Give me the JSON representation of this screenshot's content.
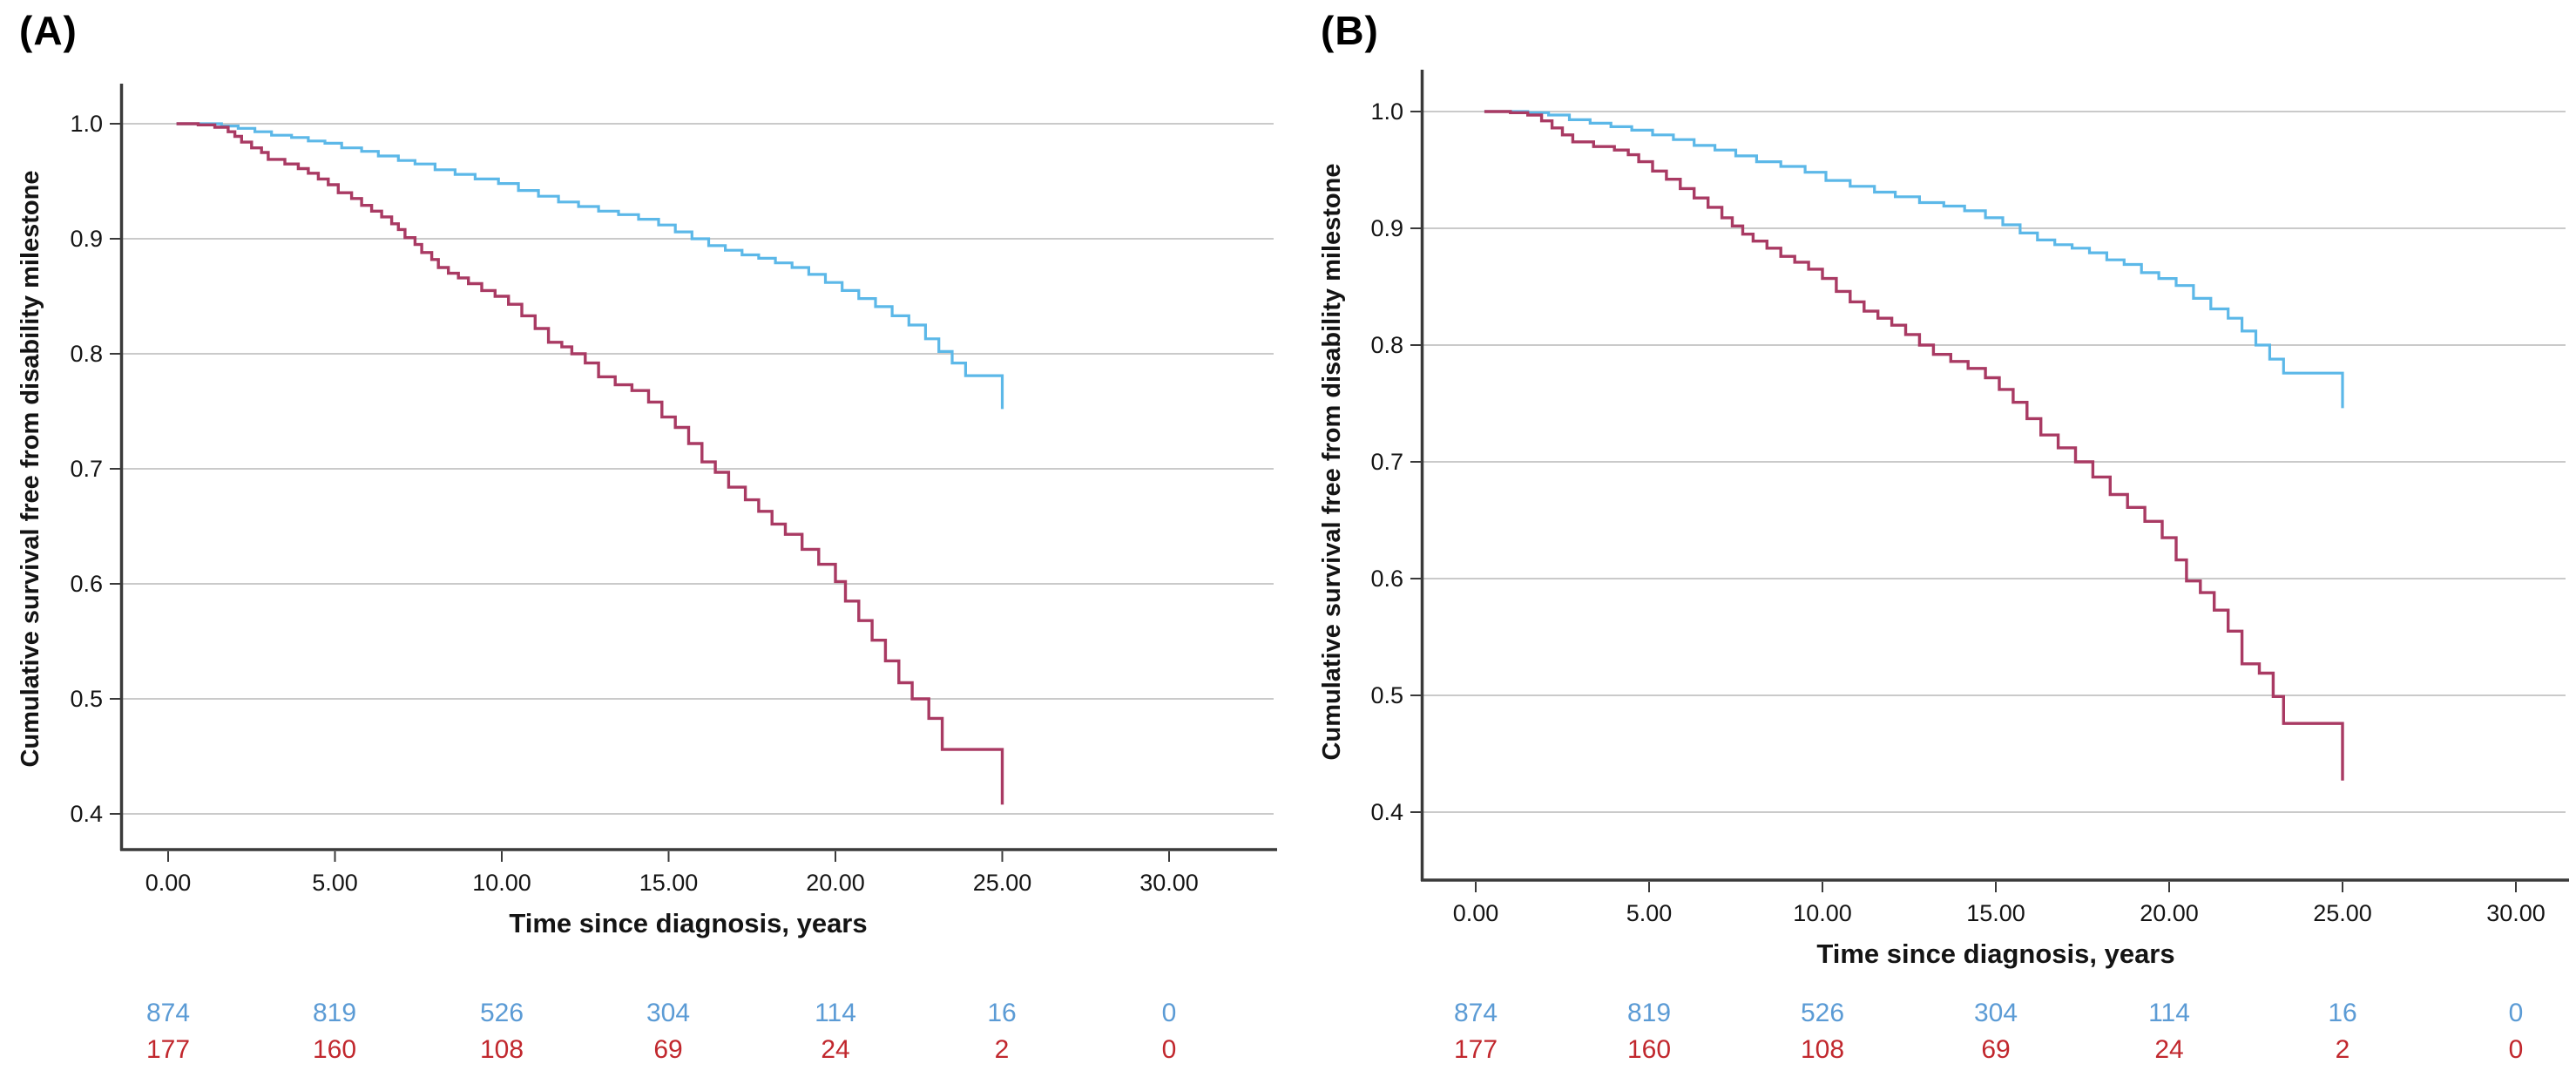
{
  "panels": [
    {
      "label": "(A)",
      "x_axis": {
        "title": "Time since diagnosis, years",
        "ticks": [
          "0.00",
          "5.00",
          "10.00",
          "15.00",
          "20.00",
          "25.00",
          "30.00"
        ]
      },
      "y_axis": {
        "title": "Cumulative survival free from disability milestone",
        "ticks": [
          "1.0",
          "0.9",
          "0.8",
          "0.7",
          "0.6",
          "0.5",
          "0.4"
        ]
      }
    },
    {
      "label": "(B)",
      "x_axis": {
        "title": "Time since diagnosis, years",
        "ticks": [
          "0.00",
          "5.00",
          "10.00",
          "15.00",
          "20.00",
          "25.00",
          "30.00"
        ]
      },
      "y_axis": {
        "title": "Cumulative survival free from disability milestone",
        "ticks": [
          "1.0",
          "0.9",
          "0.8",
          "0.7",
          "0.6",
          "0.5",
          "0.4"
        ]
      }
    }
  ],
  "colors": {
    "blue_curve": "#5cb8e8",
    "red_curve": "#a93a63",
    "blue_at_risk_text": "#5b9bd5",
    "red_at_risk_text": "#c1272d",
    "gridline": "#b8b8b8",
    "axis": "#3a3a3a"
  },
  "chart_data": [
    {
      "type": "line",
      "subtype": "kaplan-meier-step",
      "title": "(A)",
      "xlabel": "Time since diagnosis, years",
      "ylabel": "Cumulative survival free from disability milestone",
      "xlim": [
        0,
        30
      ],
      "ylim": [
        0.4,
        1.0
      ],
      "x_ticks": [
        0,
        5,
        10,
        15,
        20,
        25,
        30
      ],
      "y_ticks": [
        1.0,
        0.9,
        0.8,
        0.7,
        0.6,
        0.5,
        0.4
      ],
      "grid": "horizontal-only",
      "legend": "none",
      "series": [
        {
          "name": "blue",
          "color": "#5cb8e8",
          "points": [
            [
              0.25,
              1.0
            ],
            [
              1.6,
              0.998
            ],
            [
              2.1,
              0.996
            ],
            [
              2.6,
              0.993
            ],
            [
              3.1,
              0.99
            ],
            [
              3.7,
              0.988
            ],
            [
              4.2,
              0.985
            ],
            [
              4.7,
              0.983
            ],
            [
              5.2,
              0.979
            ],
            [
              5.8,
              0.976
            ],
            [
              6.3,
              0.972
            ],
            [
              6.9,
              0.968
            ],
            [
              7.4,
              0.965
            ],
            [
              8.0,
              0.96
            ],
            [
              8.6,
              0.956
            ],
            [
              9.2,
              0.952
            ],
            [
              9.9,
              0.948
            ],
            [
              10.5,
              0.942
            ],
            [
              11.1,
              0.937
            ],
            [
              11.7,
              0.932
            ],
            [
              12.3,
              0.928
            ],
            [
              12.9,
              0.924
            ],
            [
              13.5,
              0.921
            ],
            [
              14.1,
              0.917
            ],
            [
              14.7,
              0.912
            ],
            [
              15.2,
              0.906
            ],
            [
              15.7,
              0.9
            ],
            [
              16.2,
              0.894
            ],
            [
              16.7,
              0.89
            ],
            [
              17.2,
              0.886
            ],
            [
              17.7,
              0.883
            ],
            [
              18.2,
              0.879
            ],
            [
              18.7,
              0.875
            ],
            [
              19.2,
              0.869
            ],
            [
              19.7,
              0.862
            ],
            [
              20.2,
              0.855
            ],
            [
              20.7,
              0.848
            ],
            [
              21.2,
              0.841
            ],
            [
              21.7,
              0.833
            ],
            [
              22.2,
              0.825
            ],
            [
              22.7,
              0.813
            ],
            [
              23.1,
              0.802
            ],
            [
              23.5,
              0.792
            ],
            [
              23.9,
              0.781
            ],
            [
              25.0,
              0.752
            ]
          ]
        },
        {
          "name": "red",
          "color": "#a93a63",
          "points": [
            [
              0.25,
              1.0
            ],
            [
              0.9,
              0.999
            ],
            [
              1.4,
              0.997
            ],
            [
              1.8,
              0.993
            ],
            [
              2.0,
              0.989
            ],
            [
              2.2,
              0.984
            ],
            [
              2.5,
              0.979
            ],
            [
              2.8,
              0.975
            ],
            [
              3.0,
              0.969
            ],
            [
              3.5,
              0.965
            ],
            [
              3.9,
              0.961
            ],
            [
              4.2,
              0.957
            ],
            [
              4.5,
              0.952
            ],
            [
              4.8,
              0.947
            ],
            [
              5.1,
              0.94
            ],
            [
              5.5,
              0.935
            ],
            [
              5.8,
              0.929
            ],
            [
              6.1,
              0.924
            ],
            [
              6.4,
              0.919
            ],
            [
              6.7,
              0.913
            ],
            [
              6.9,
              0.908
            ],
            [
              7.1,
              0.901
            ],
            [
              7.4,
              0.895
            ],
            [
              7.6,
              0.888
            ],
            [
              7.9,
              0.882
            ],
            [
              8.1,
              0.875
            ],
            [
              8.4,
              0.87
            ],
            [
              8.7,
              0.866
            ],
            [
              9.0,
              0.861
            ],
            [
              9.4,
              0.855
            ],
            [
              9.8,
              0.85
            ],
            [
              10.2,
              0.843
            ],
            [
              10.6,
              0.833
            ],
            [
              11.0,
              0.822
            ],
            [
              11.4,
              0.81
            ],
            [
              11.8,
              0.806
            ],
            [
              12.1,
              0.8
            ],
            [
              12.5,
              0.792
            ],
            [
              12.9,
              0.78
            ],
            [
              13.4,
              0.773
            ],
            [
              13.9,
              0.768
            ],
            [
              14.4,
              0.758
            ],
            [
              14.8,
              0.745
            ],
            [
              15.2,
              0.736
            ],
            [
              15.6,
              0.722
            ],
            [
              16.0,
              0.706
            ],
            [
              16.4,
              0.697
            ],
            [
              16.8,
              0.684
            ],
            [
              17.3,
              0.673
            ],
            [
              17.7,
              0.663
            ],
            [
              18.1,
              0.652
            ],
            [
              18.5,
              0.643
            ],
            [
              19.0,
              0.63
            ],
            [
              19.5,
              0.617
            ],
            [
              20.0,
              0.602
            ],
            [
              20.3,
              0.585
            ],
            [
              20.7,
              0.568
            ],
            [
              21.1,
              0.551
            ],
            [
              21.5,
              0.533
            ],
            [
              21.9,
              0.514
            ],
            [
              22.3,
              0.5
            ],
            [
              22.8,
              0.483
            ],
            [
              23.2,
              0.456
            ],
            [
              25.0,
              0.408
            ]
          ]
        }
      ],
      "at_risk": {
        "times": [
          0,
          5,
          10,
          15,
          20,
          25,
          30
        ],
        "blue": [
          874,
          819,
          526,
          304,
          114,
          16,
          0
        ],
        "red": [
          177,
          160,
          108,
          69,
          24,
          2,
          0
        ]
      }
    },
    {
      "type": "line",
      "subtype": "kaplan-meier-step",
      "title": "(B)",
      "xlabel": "Time since diagnosis, years",
      "ylabel": "Cumulative survival free from disability milestone",
      "xlim": [
        0,
        30
      ],
      "ylim": [
        0.4,
        1.0
      ],
      "x_ticks": [
        0,
        5,
        10,
        15,
        20,
        25,
        30
      ],
      "y_ticks": [
        1.0,
        0.9,
        0.8,
        0.7,
        0.6,
        0.5,
        0.4
      ],
      "grid": "horizontal-only",
      "legend": "none",
      "series": [
        {
          "name": "blue",
          "color": "#5cb8e8",
          "points": [
            [
              0.25,
              1.0
            ],
            [
              1.5,
              0.999
            ],
            [
              2.1,
              0.997
            ],
            [
              2.7,
              0.993
            ],
            [
              3.3,
              0.99
            ],
            [
              3.9,
              0.987
            ],
            [
              4.5,
              0.984
            ],
            [
              5.1,
              0.98
            ],
            [
              5.7,
              0.976
            ],
            [
              6.3,
              0.971
            ],
            [
              6.9,
              0.967
            ],
            [
              7.5,
              0.962
            ],
            [
              8.1,
              0.957
            ],
            [
              8.8,
              0.953
            ],
            [
              9.5,
              0.948
            ],
            [
              10.1,
              0.941
            ],
            [
              10.8,
              0.936
            ],
            [
              11.5,
              0.931
            ],
            [
              12.1,
              0.927
            ],
            [
              12.8,
              0.922
            ],
            [
              13.5,
              0.919
            ],
            [
              14.1,
              0.915
            ],
            [
              14.7,
              0.909
            ],
            [
              15.2,
              0.903
            ],
            [
              15.7,
              0.896
            ],
            [
              16.2,
              0.89
            ],
            [
              16.7,
              0.886
            ],
            [
              17.2,
              0.883
            ],
            [
              17.7,
              0.879
            ],
            [
              18.2,
              0.873
            ],
            [
              18.7,
              0.869
            ],
            [
              19.2,
              0.862
            ],
            [
              19.7,
              0.857
            ],
            [
              20.2,
              0.851
            ],
            [
              20.7,
              0.84
            ],
            [
              21.2,
              0.831
            ],
            [
              21.7,
              0.823
            ],
            [
              22.1,
              0.812
            ],
            [
              22.5,
              0.8
            ],
            [
              22.9,
              0.788
            ],
            [
              23.3,
              0.776
            ],
            [
              25.0,
              0.746
            ]
          ]
        },
        {
          "name": "red",
          "color": "#a93a63",
          "points": [
            [
              0.25,
              1.0
            ],
            [
              1.0,
              0.999
            ],
            [
              1.5,
              0.997
            ],
            [
              1.9,
              0.992
            ],
            [
              2.2,
              0.986
            ],
            [
              2.5,
              0.98
            ],
            [
              2.8,
              0.974
            ],
            [
              3.4,
              0.97
            ],
            [
              4.0,
              0.967
            ],
            [
              4.4,
              0.963
            ],
            [
              4.7,
              0.957
            ],
            [
              5.1,
              0.949
            ],
            [
              5.5,
              0.942
            ],
            [
              5.9,
              0.934
            ],
            [
              6.3,
              0.926
            ],
            [
              6.7,
              0.918
            ],
            [
              7.1,
              0.909
            ],
            [
              7.4,
              0.902
            ],
            [
              7.7,
              0.895
            ],
            [
              8.0,
              0.889
            ],
            [
              8.4,
              0.883
            ],
            [
              8.8,
              0.876
            ],
            [
              9.2,
              0.871
            ],
            [
              9.6,
              0.865
            ],
            [
              10.0,
              0.857
            ],
            [
              10.4,
              0.846
            ],
            [
              10.8,
              0.837
            ],
            [
              11.2,
              0.829
            ],
            [
              11.6,
              0.823
            ],
            [
              12.0,
              0.817
            ],
            [
              12.4,
              0.809
            ],
            [
              12.8,
              0.8
            ],
            [
              13.2,
              0.792
            ],
            [
              13.7,
              0.786
            ],
            [
              14.2,
              0.78
            ],
            [
              14.7,
              0.772
            ],
            [
              15.1,
              0.762
            ],
            [
              15.5,
              0.751
            ],
            [
              15.9,
              0.737
            ],
            [
              16.3,
              0.723
            ],
            [
              16.8,
              0.712
            ],
            [
              17.3,
              0.7
            ],
            [
              17.8,
              0.687
            ],
            [
              18.3,
              0.672
            ],
            [
              18.8,
              0.661
            ],
            [
              19.3,
              0.649
            ],
            [
              19.8,
              0.635
            ],
            [
              20.2,
              0.616
            ],
            [
              20.5,
              0.598
            ],
            [
              20.9,
              0.588
            ],
            [
              21.3,
              0.573
            ],
            [
              21.7,
              0.555
            ],
            [
              22.1,
              0.527
            ],
            [
              22.6,
              0.519
            ],
            [
              23.0,
              0.499
            ],
            [
              23.3,
              0.476
            ],
            [
              25.0,
              0.427
            ]
          ]
        }
      ],
      "at_risk": {
        "times": [
          0,
          5,
          10,
          15,
          20,
          25,
          30
        ],
        "blue": [
          874,
          819,
          526,
          304,
          114,
          16,
          0
        ],
        "red": [
          177,
          160,
          108,
          69,
          24,
          2,
          0
        ]
      }
    }
  ]
}
